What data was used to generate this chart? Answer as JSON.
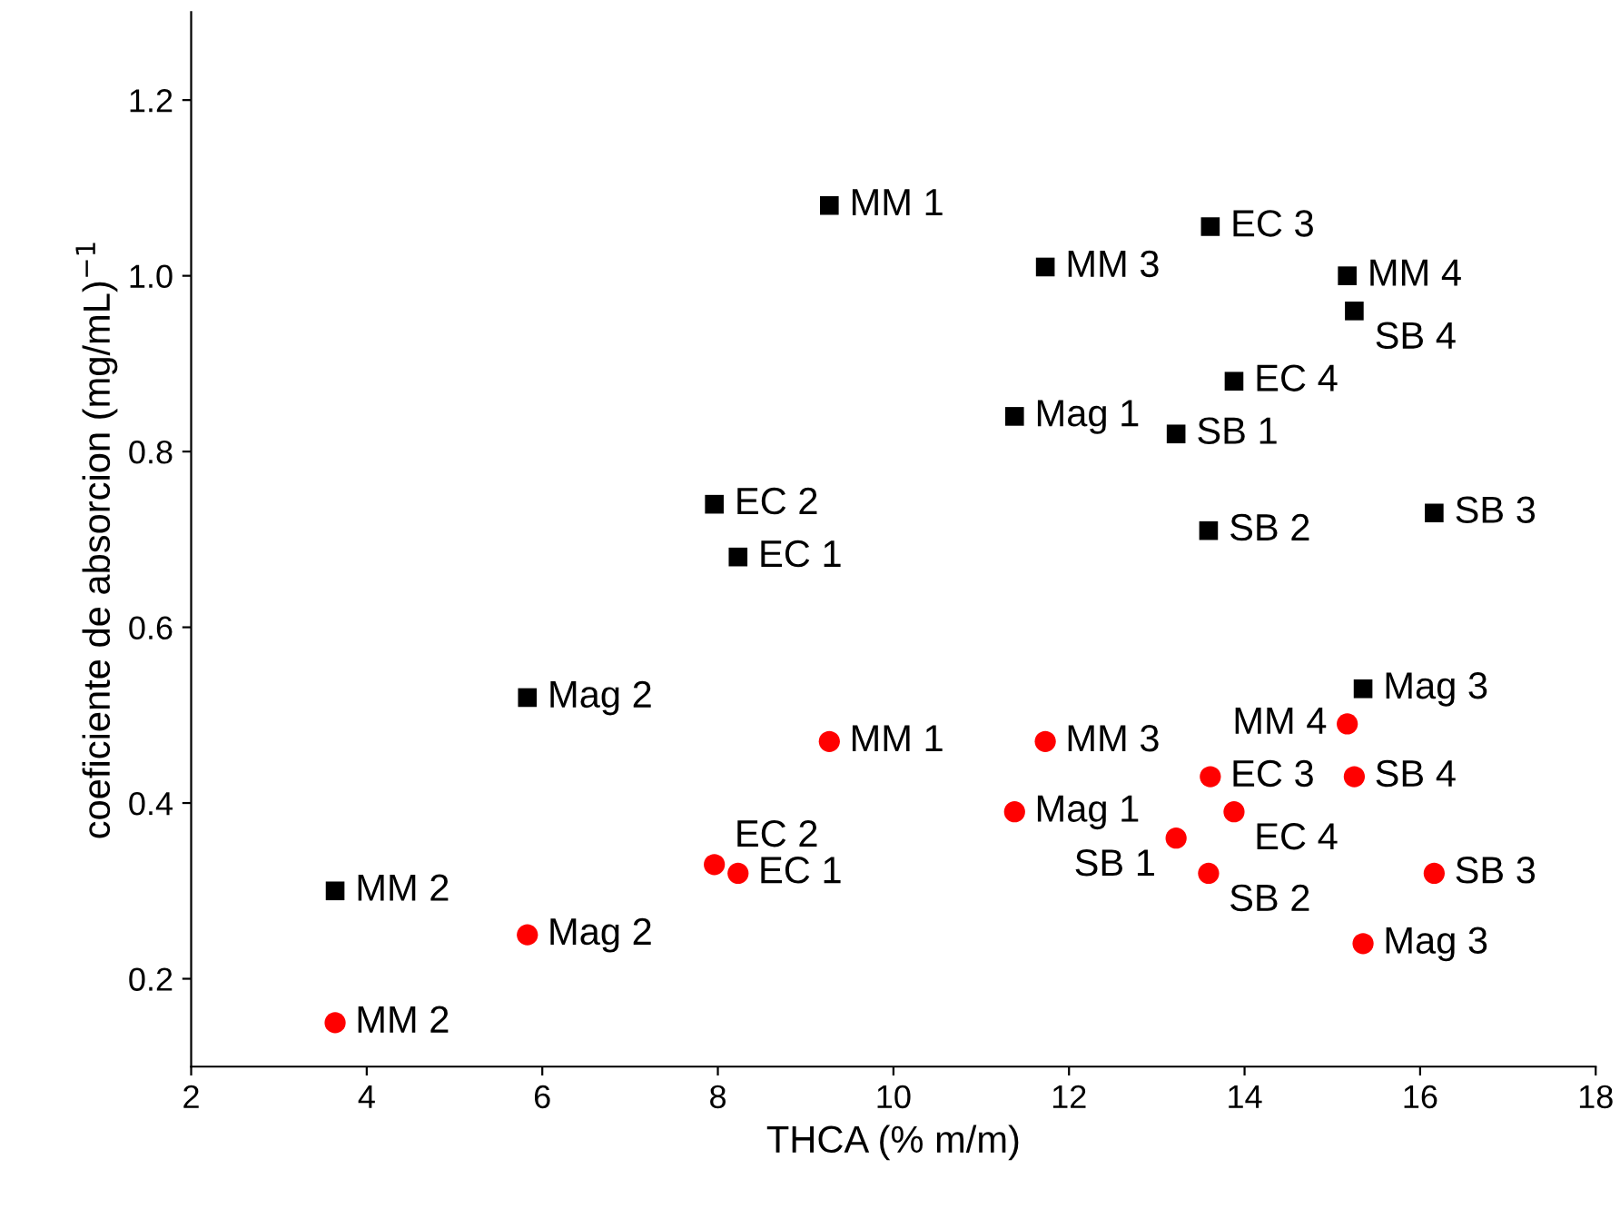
{
  "chart_data": {
    "type": "scatter",
    "xlabel": "THCA (% m/m)",
    "ylabel": "coeficiente de absorcion (mg/mL)$^{−1}$",
    "x": [
      9.27,
      13.61,
      11.73,
      15.17,
      15.25,
      13.88,
      11.38,
      13.22,
      7.96,
      13.59,
      16.16,
      8.23,
      5.83,
      15.35,
      3.64
    ],
    "series": [
      {
        "color": "#000000",
        "marker": "square",
        "values": [
          1.08,
          1.056,
          1.01,
          1.0,
          0.96,
          0.88,
          0.84,
          0.82,
          0.74,
          0.71,
          0.73,
          0.68,
          0.52,
          0.53,
          0.3
        ],
        "value_labels": [
          "MM 1",
          "EC 3",
          "MM 3",
          "MM 4",
          "SB 4",
          "EC 4",
          "Mag 1",
          "SB 1",
          "EC 2",
          "SB 2",
          "SB 3",
          "EC 1",
          "Mag 2",
          "Mag 3",
          "MM 2"
        ]
      },
      {
        "color": "#ff0000",
        "marker": "circle",
        "values": [
          0.47,
          0.43,
          0.47,
          0.49,
          0.43,
          0.39,
          0.39,
          0.36,
          0.33,
          0.32,
          0.32,
          0.32,
          0.25,
          0.24,
          0.15
        ],
        "value_labels": [
          "MM 1",
          "EC 3",
          "MM 3",
          "MM 4",
          "SB 4",
          "EC 4",
          "Mag 1",
          "SB 1",
          "EC 2",
          "SB 2",
          "SB 3",
          "EC 1",
          "Mag 2",
          "Mag 3",
          "MM 2"
        ]
      }
    ],
    "xlim": [
      2,
      18
    ],
    "xticks": [
      2,
      4,
      6,
      8,
      10,
      12,
      14,
      16,
      18
    ],
    "ylim": [
      0.1,
      1.3
    ],
    "yticks": [
      {
        "value": 0.2,
        "label": "0.2"
      },
      {
        "value": 0.4,
        "label": "0.4"
      },
      {
        "value": 0.6,
        "label": "0.6"
      },
      {
        "value": 0.8,
        "label": "0.8"
      },
      {
        "value": 1.0,
        "label": "1.0"
      },
      {
        "value": 1.2,
        "label": "1.2"
      }
    ],
    "grid": false,
    "legend": false
  }
}
